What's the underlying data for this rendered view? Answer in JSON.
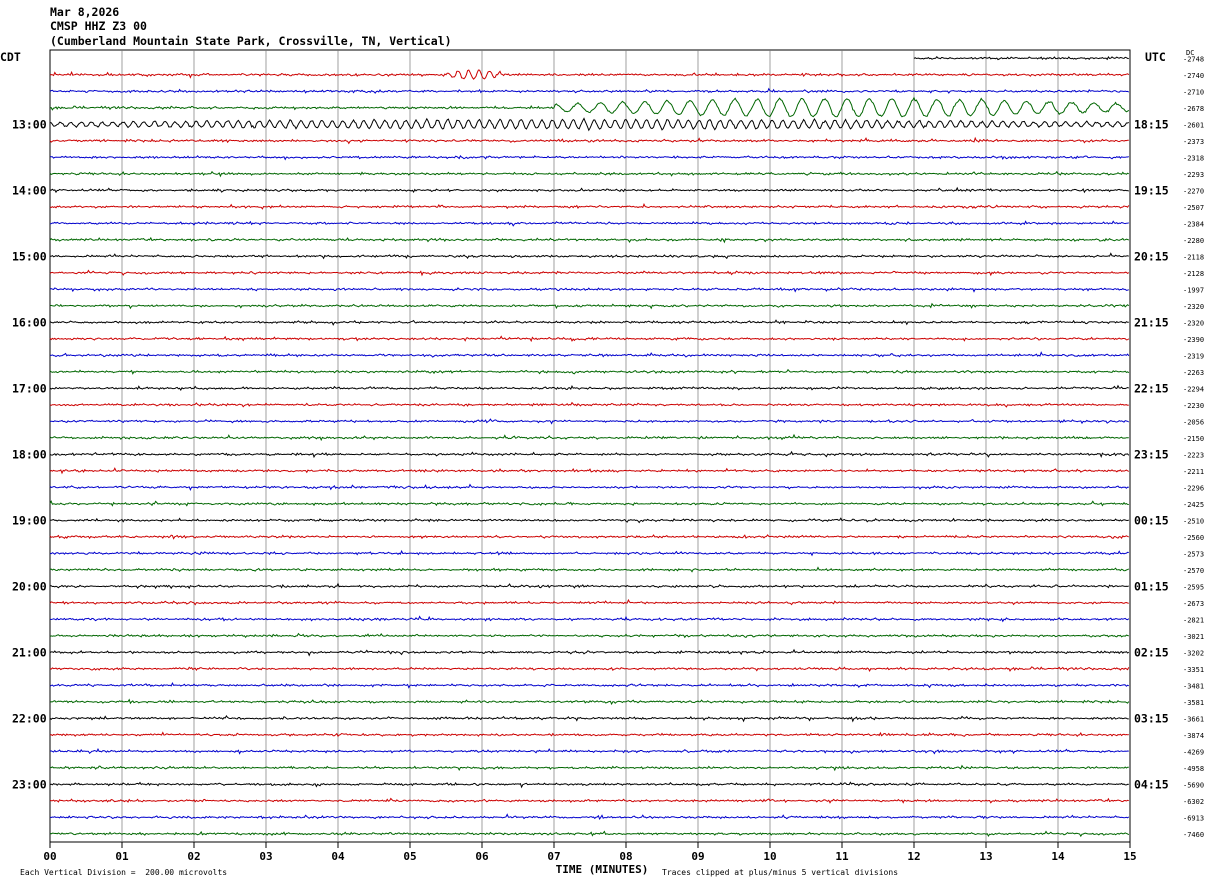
{
  "header": {
    "date": "Mar 8,2026",
    "station": "CMSP HHZ Z3 00",
    "location": "(Cumberland Mountain State Park, Crossville, TN, Vertical)"
  },
  "left_label": "CDT",
  "right_label": "UTC",
  "dc_label": "DC",
  "footer": {
    "left": "Each Vertical Division =  200.00 microvolts",
    "right": "Traces clipped at plus/minus 5 vertical divisions"
  },
  "chart_data": {
    "type": "line",
    "title": "",
    "xlabel": "TIME (MINUTES)",
    "ylabel": "",
    "xlim": [
      0,
      15
    ],
    "x_ticks": [
      "00",
      "01",
      "02",
      "03",
      "04",
      "05",
      "06",
      "07",
      "08",
      "09",
      "10",
      "11",
      "12",
      "13",
      "14",
      "15"
    ],
    "grid": true,
    "trace_colors": [
      "#000000",
      "#cc0000",
      "#0000cc",
      "#006600"
    ],
    "first_trace_start_minute": 12,
    "left_time_labels": [
      {
        "trace": 4,
        "text": "13:00"
      },
      {
        "trace": 8,
        "text": "14:00"
      },
      {
        "trace": 12,
        "text": "15:00"
      },
      {
        "trace": 16,
        "text": "16:00"
      },
      {
        "trace": 20,
        "text": "17:00"
      },
      {
        "trace": 24,
        "text": "18:00"
      },
      {
        "trace": 28,
        "text": "19:00"
      },
      {
        "trace": 32,
        "text": "20:00"
      },
      {
        "trace": 36,
        "text": "21:00"
      },
      {
        "trace": 40,
        "text": "22:00"
      },
      {
        "trace": 44,
        "text": "23:00"
      }
    ],
    "right_time_labels": [
      {
        "trace": 4,
        "text": "18:15"
      },
      {
        "trace": 8,
        "text": "19:15"
      },
      {
        "trace": 12,
        "text": "20:15"
      },
      {
        "trace": 16,
        "text": "21:15"
      },
      {
        "trace": 20,
        "text": "22:15"
      },
      {
        "trace": 24,
        "text": "23:15"
      },
      {
        "trace": 28,
        "text": "00:15"
      },
      {
        "trace": 32,
        "text": "01:15"
      },
      {
        "trace": 36,
        "text": "02:15"
      },
      {
        "trace": 40,
        "text": "03:15"
      },
      {
        "trace": 44,
        "text": "04:15"
      }
    ],
    "dc_values": [
      "-2748",
      "-2740",
      "-2710",
      "-2678",
      "-2601",
      "-2373",
      "-2318",
      "-2293",
      "-2270",
      "-2507",
      "-2384",
      "-2280",
      "-2118",
      "-2128",
      "-1997",
      "-2320",
      "-2320",
      "-2390",
      "-2319",
      "-2263",
      "-2294",
      "-2230",
      "-2056",
      "-2150",
      "-2223",
      "-2211",
      "-2296",
      "-2425",
      "-2510",
      "-2560",
      "-2573",
      "-2570",
      "-2595",
      "-2673",
      "-2821",
      "-3021",
      "-3202",
      "-3351",
      "-3481",
      "-3581",
      "-3661",
      "-3874",
      "-4269",
      "-4958",
      "-5690",
      "-6302",
      "-6913",
      "-7460"
    ],
    "events": [
      {
        "trace": 1,
        "start_minute": 5.5,
        "end_minute": 6.3,
        "amplitude": "medium"
      },
      {
        "trace": 3,
        "start_minute": 7.0,
        "end_minute": 15.0,
        "amplitude": "large"
      },
      {
        "trace": 4,
        "start_minute": 0.0,
        "end_minute": 15.0,
        "amplitude": "medium"
      }
    ]
  }
}
